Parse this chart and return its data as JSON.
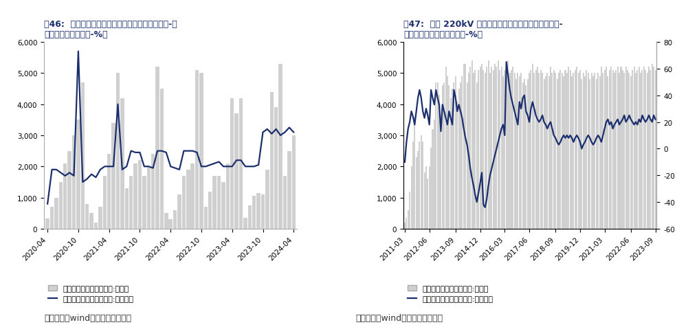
{
  "fig46": {
    "title": "图46:  电网基本建设投资完成累计（左轴：累计值-亿\n元；右轴：累计同比-%）",
    "bar_label": "电网基本建设投资完成额:累计值",
    "line_label": "电网基本建设投资完成额:累计同比",
    "source": "数据来源：wind、东吴证券研究所",
    "bar_color": "#d0d0d0",
    "line_color": "#1b2f6e",
    "ylim_left": [
      0,
      6000
    ],
    "yticks_left": [
      0,
      1000,
      2000,
      3000,
      4000,
      5000,
      6000
    ],
    "x_tick_labels": [
      "2020-04",
      "2020-10",
      "2021-04",
      "2021-10",
      "2022-04",
      "2022-10",
      "2023-04",
      "2023-10",
      "2024-04"
    ],
    "bar_data": [
      330,
      700,
      1000,
      1500,
      2100,
      2500,
      3000,
      3500,
      4700,
      800,
      500,
      200,
      700,
      1700,
      2400,
      3400,
      5000,
      4200,
      1300,
      1700,
      2100,
      2200,
      1700,
      2000,
      2400,
      5200,
      4500,
      500,
      300,
      600,
      1100,
      1700,
      1900,
      2100,
      5100,
      5000,
      700,
      1200,
      1700,
      1700,
      1500,
      2100,
      4200,
      3700,
      4200,
      350,
      750,
      1050,
      1150,
      1100,
      1900,
      4400,
      3900,
      5300,
      1700,
      2500,
      3000
    ],
    "line_data": [
      800,
      1900,
      1900,
      1800,
      1700,
      1800,
      1700,
      5700,
      1500,
      1600,
      1750,
      1650,
      1900,
      2000,
      2000,
      2000,
      4000,
      1900,
      2000,
      2500,
      2450,
      2450,
      2000,
      2000,
      1950,
      2500,
      2500,
      2450,
      2000,
      1950,
      1900,
      2500,
      2500,
      2500,
      2450,
      2000,
      2000,
      2050,
      2100,
      2150,
      2000,
      2000,
      2000,
      2200,
      2200,
      2000,
      2000,
      2000,
      2050,
      3100,
      3200,
      3050,
      3200,
      3000,
      3100,
      3250,
      3100
    ]
  },
  "fig47": {
    "title": "图47:  新增 220kV 及以上变电容量累计（左轴：累计值-\n万千伏安；右轴：累计同比-%）",
    "bar_label": "电网基本建设投资完成额:累计值",
    "line_label": "电网基本建设投资完成额:累计同比",
    "source": "数据来源：wind、东吴证券研究所",
    "bar_color": "#d0d0d0",
    "line_color": "#1b2f6e",
    "ylim_left": [
      0,
      6000
    ],
    "yticks_left": [
      0,
      1000,
      2000,
      3000,
      4000,
      5000,
      6000
    ],
    "ylim_right": [
      -60,
      80
    ],
    "yticks_right": [
      -60,
      -40,
      -20,
      0,
      20,
      40,
      60,
      80
    ],
    "x_tick_labels": [
      "2011-03",
      "2012-06",
      "2013-09",
      "2014-12",
      "2016-03",
      "2017-06",
      "2018-09",
      "2019-12",
      "2021-03",
      "2022-06",
      "2023-09"
    ],
    "n_bars": 154,
    "bar_data": [
      200,
      350,
      600,
      1200,
      2000,
      2800,
      3600,
      2300,
      2500,
      2800,
      3000,
      2800,
      1800,
      2000,
      1600,
      2000,
      2600,
      3200,
      3500,
      4700,
      4700,
      4300,
      3500,
      4600,
      4700,
      5200,
      4900,
      4600,
      4200,
      4500,
      4700,
      4900,
      4100,
      4500,
      4700,
      4900,
      5300,
      5300,
      4700,
      5000,
      5200,
      5400,
      5000,
      5100,
      4700,
      5100,
      5200,
      5300,
      5100,
      5000,
      5200,
      5400,
      5000,
      5200,
      5100,
      5300,
      5200,
      5400,
      5100,
      5200,
      4900,
      5100,
      5200,
      5400,
      5000,
      5100,
      5200,
      5000,
      4800,
      5000,
      4900,
      5000,
      4700,
      4800,
      4600,
      4800,
      5000,
      5100,
      5300,
      5000,
      5100,
      5200,
      5000,
      5100,
      5000,
      4800,
      4900,
      5000,
      4900,
      5200,
      5000,
      5100,
      5000,
      4800,
      5000,
      5100,
      5000,
      4900,
      5100,
      5000,
      5200,
      5100,
      4900,
      5000,
      5100,
      5200,
      5000,
      5100,
      4800,
      5000,
      4900,
      5100,
      5000,
      4800,
      5000,
      4900,
      5000,
      4800,
      5000,
      4900,
      5200,
      5000,
      5100,
      5200,
      4900,
      5100,
      5200,
      5100,
      5000,
      5100,
      5200,
      5000,
      5200,
      5100,
      5000,
      5200,
      5100,
      5000,
      4900,
      5100,
      5200,
      5000,
      5100,
      5200,
      5000,
      5100,
      5200,
      5100,
      5000,
      5200,
      5100,
      5300,
      5200,
      5100
    ],
    "line_data": [
      -10,
      5,
      15,
      20,
      28,
      24,
      18,
      28,
      38,
      44,
      38,
      28,
      23,
      30,
      25,
      18,
      44,
      38,
      33,
      44,
      38,
      33,
      13,
      33,
      28,
      23,
      18,
      28,
      23,
      18,
      44,
      38,
      28,
      33,
      28,
      23,
      15,
      8,
      3,
      -5,
      -15,
      -22,
      -28,
      -35,
      -40,
      -33,
      -26,
      -18,
      -42,
      -44,
      -38,
      -28,
      -20,
      -15,
      -10,
      -5,
      0,
      5,
      10,
      15,
      18,
      10,
      65,
      55,
      45,
      38,
      33,
      28,
      23,
      18,
      35,
      30,
      38,
      40,
      28,
      25,
      20,
      30,
      35,
      30,
      25,
      22,
      20,
      22,
      25,
      20,
      18,
      15,
      18,
      20,
      15,
      10,
      8,
      5,
      3,
      5,
      8,
      10,
      8,
      10,
      8,
      10,
      8,
      5,
      8,
      10,
      8,
      5,
      0,
      3,
      5,
      8,
      10,
      8,
      5,
      3,
      5,
      8,
      10,
      8,
      5,
      10,
      15,
      20,
      22,
      18,
      20,
      15,
      18,
      20,
      22,
      18,
      20,
      22,
      25,
      20,
      22,
      25,
      22,
      20,
      18,
      20,
      18,
      22,
      20,
      25,
      22,
      20,
      22,
      25,
      22,
      20,
      25,
      22
    ]
  },
  "background_color": "#ffffff",
  "text_color": "#333333",
  "title_color": "#1b2f6e",
  "font_size_title": 9,
  "font_size_tick": 7.5,
  "font_size_legend": 8,
  "font_size_source": 9
}
